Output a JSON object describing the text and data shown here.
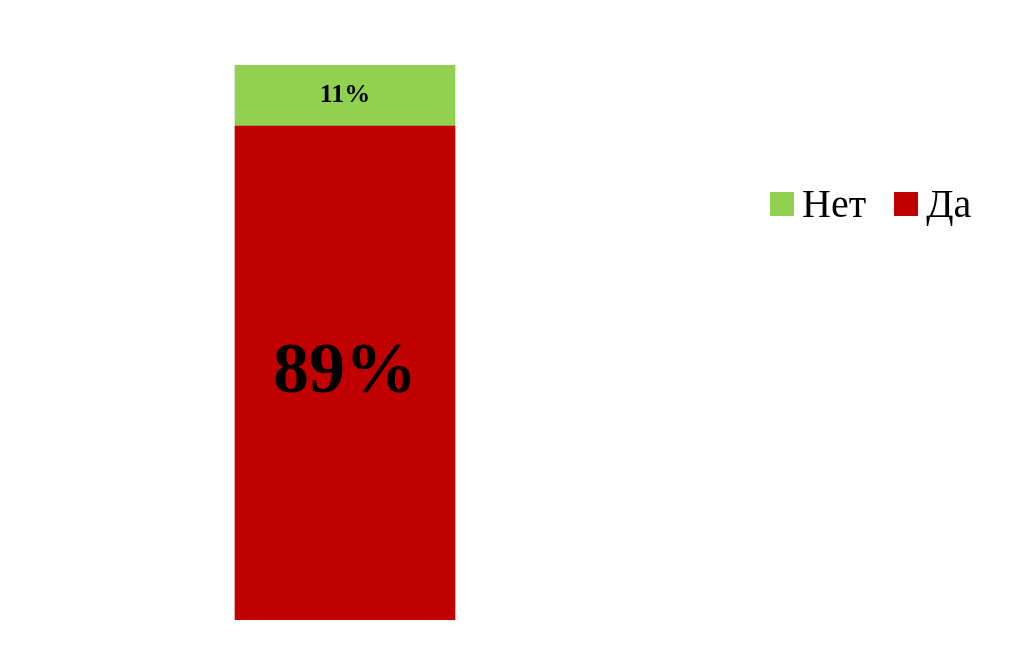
{
  "chart_data": {
    "type": "bar",
    "stacked": true,
    "categories": [
      null
    ],
    "series": [
      {
        "name": "Да",
        "color": "#c00000",
        "values": [
          89
        ],
        "value_labels": [
          "89%"
        ]
      },
      {
        "name": "Нет",
        "color": "#92d050",
        "values": [
          11
        ],
        "value_labels": [
          "11%"
        ]
      }
    ],
    "legend": "right",
    "tick_labels": false
  }
}
